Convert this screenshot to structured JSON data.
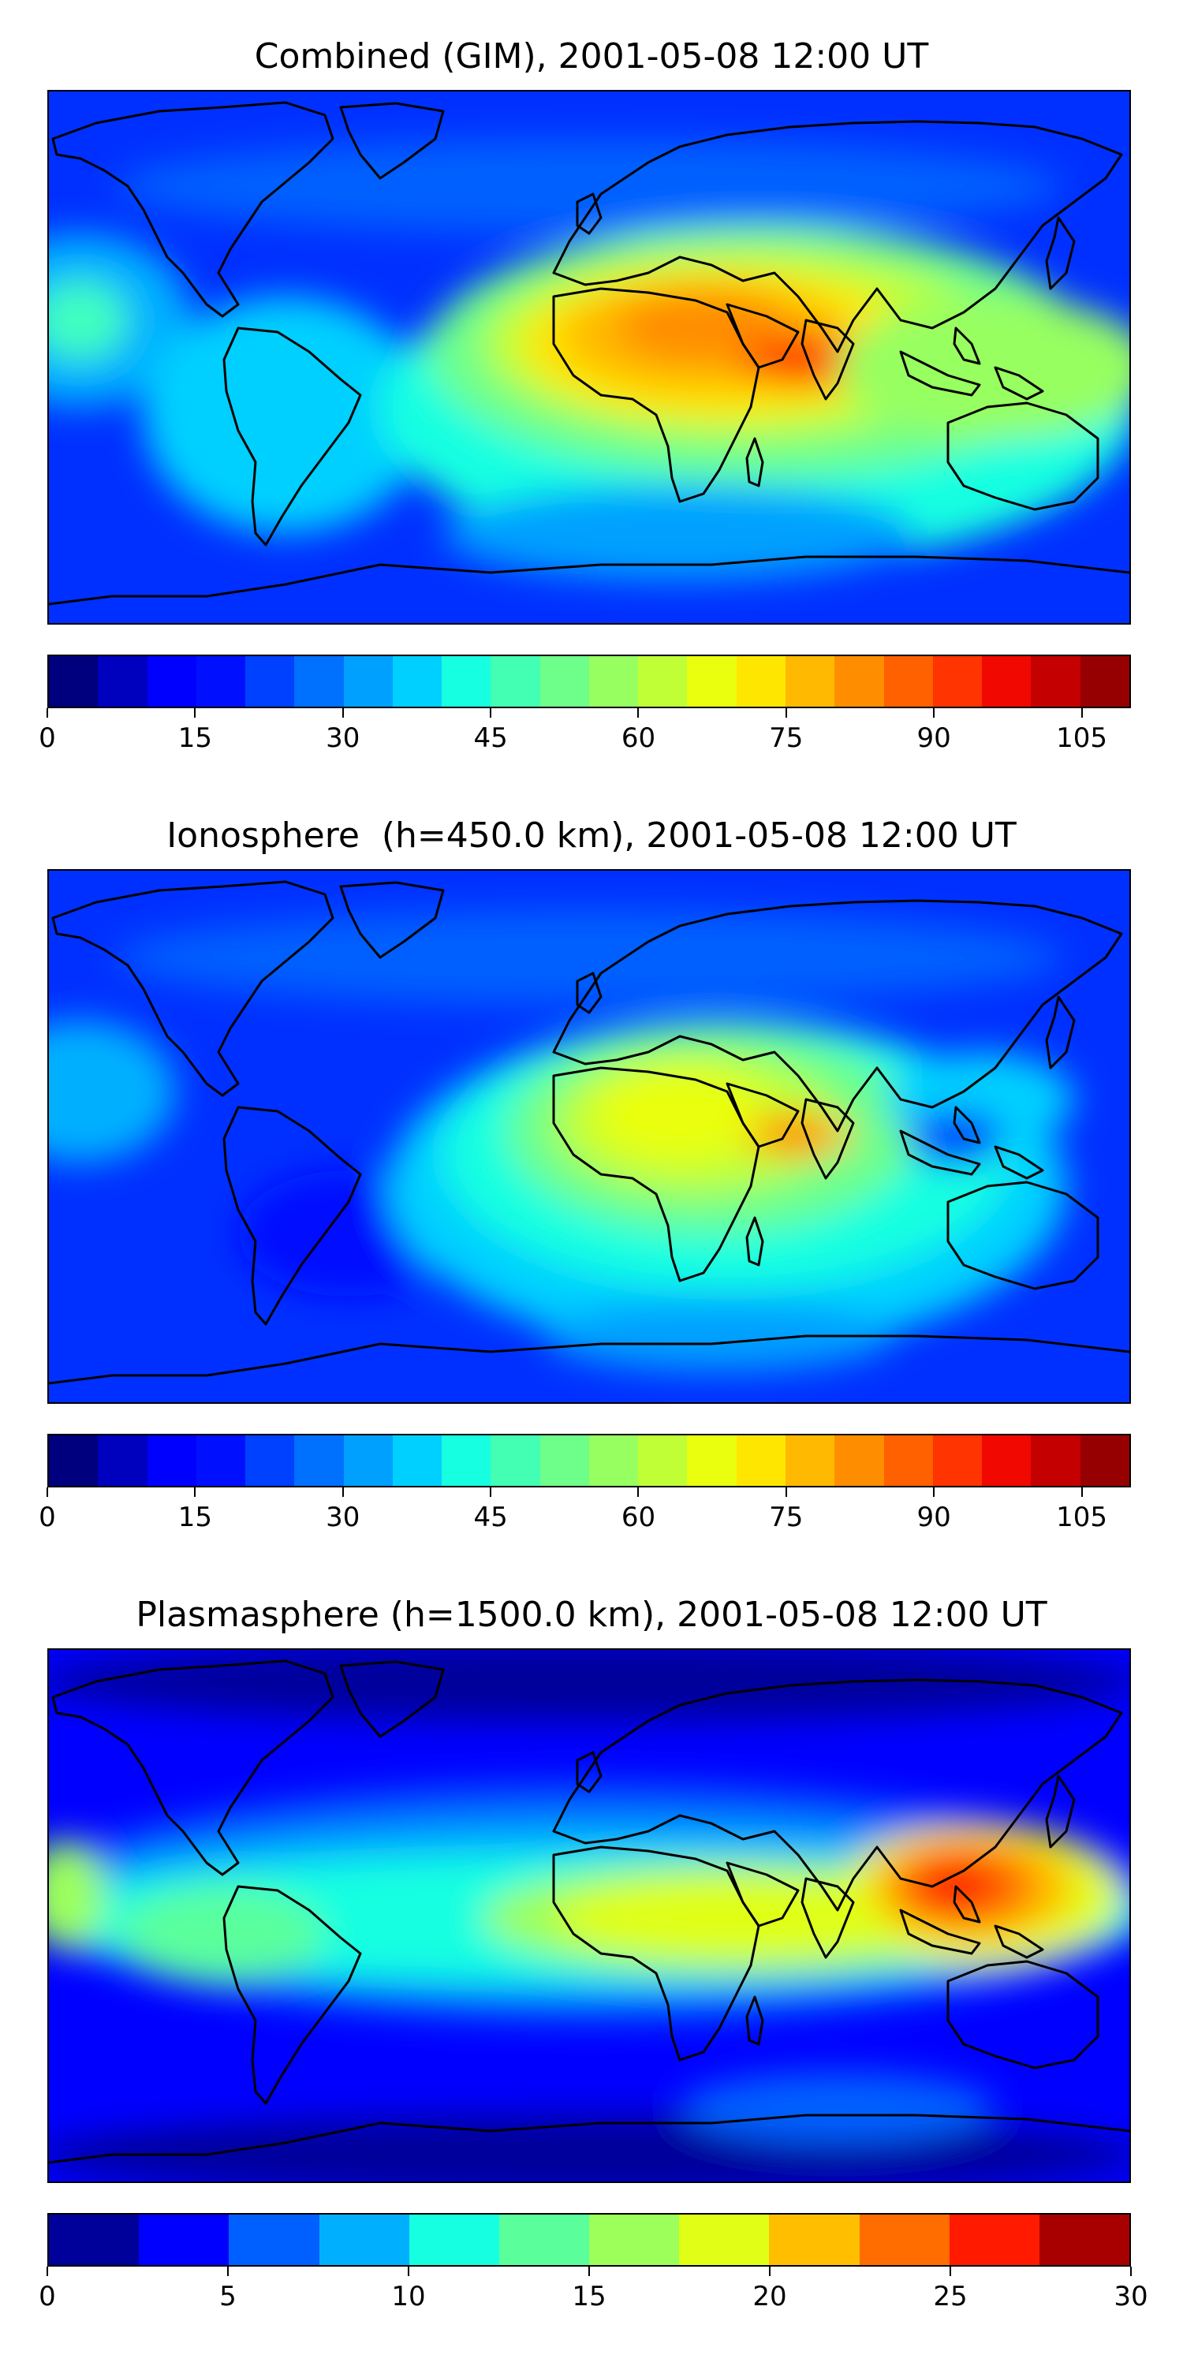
{
  "panels": [
    {
      "title": "Combined (GIM), 2001-05-08 12:00 UT",
      "colorbar": {
        "min": 0,
        "max": 110,
        "step": 5,
        "tick_labels": [
          "0",
          "15",
          "30",
          "45",
          "60",
          "75",
          "90",
          "105"
        ],
        "colors": [
          "#00007f",
          "#0000bf",
          "#0000ff",
          "#0010ff",
          "#0040ff",
          "#0070ff",
          "#00a0ff",
          "#00d0ff",
          "#16ffe1",
          "#43ffb3",
          "#6dff8a",
          "#97ff60",
          "#c0ff36",
          "#e9ff0d",
          "#ffe600",
          "#ffb900",
          "#ff8d00",
          "#ff6000",
          "#ff3400",
          "#f10800",
          "#c40000",
          "#960000"
        ]
      }
    },
    {
      "title": "Ionosphere  (h=450.0 km), 2001-05-08 12:00 UT",
      "colorbar": {
        "min": 0,
        "max": 110,
        "step": 5,
        "tick_labels": [
          "0",
          "15",
          "30",
          "45",
          "60",
          "75",
          "90",
          "105"
        ],
        "colors": [
          "#00007f",
          "#0000bf",
          "#0000ff",
          "#0010ff",
          "#0040ff",
          "#0070ff",
          "#00a0ff",
          "#00d0ff",
          "#16ffe1",
          "#43ffb3",
          "#6dff8a",
          "#97ff60",
          "#c0ff36",
          "#e9ff0d",
          "#ffe600",
          "#ffb900",
          "#ff8d00",
          "#ff6000",
          "#ff3400",
          "#f10800",
          "#c40000",
          "#960000"
        ]
      }
    },
    {
      "title": "Plasmasphere (h=1500.0 km), 2001-05-08 12:00 UT",
      "colorbar": {
        "min": 0,
        "max": 30,
        "step": 2.5,
        "tick_labels": [
          "0",
          "5",
          "10",
          "15",
          "20",
          "25",
          "30"
        ],
        "colors": [
          "#00009a",
          "#0000ff",
          "#0060ff",
          "#00b0ff",
          "#16ffe1",
          "#5aff9c",
          "#9cff5a",
          "#e1ff16",
          "#ffbf00",
          "#ff6c00",
          "#ff1a00",
          "#a80000"
        ]
      }
    }
  ]
}
